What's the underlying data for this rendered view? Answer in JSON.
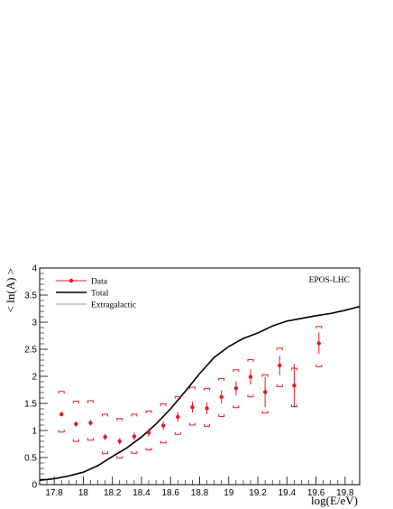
{
  "chart_data": {
    "type": "scatter",
    "title": "",
    "model_label": "EPOS-LHC",
    "xlabel": "log(E/eV)",
    "ylabel": "< ln(A) >",
    "xlim": [
      17.7,
      19.9
    ],
    "ylim": [
      0,
      4
    ],
    "x_ticks": [
      "17.8",
      "18",
      "18.2",
      "18.4",
      "18.6",
      "18.8",
      "19",
      "19.2",
      "19.4",
      "19.6",
      "19.8"
    ],
    "y_ticks": [
      "0",
      "0.5",
      "1",
      "1.5",
      "2",
      "2.5",
      "3",
      "3.5",
      "4"
    ],
    "grid": false,
    "legend_position": "top-left",
    "colors": {
      "data": "#e41a1c",
      "total": "#000000",
      "extragalactic": "#cccccc"
    },
    "series": [
      {
        "name": "Data",
        "kind": "points",
        "x": [
          17.85,
          17.95,
          18.05,
          18.15,
          18.25,
          18.35,
          18.45,
          18.55,
          18.65,
          18.75,
          18.85,
          18.95,
          19.05,
          19.15,
          19.25,
          19.35,
          19.45,
          19.62
        ],
        "y": [
          1.3,
          1.12,
          1.14,
          0.88,
          0.8,
          0.89,
          0.96,
          1.09,
          1.25,
          1.43,
          1.41,
          1.62,
          1.78,
          1.99,
          1.71,
          2.2,
          1.83,
          2.61
        ],
        "stat_err": [
          0.04,
          0.05,
          0.05,
          0.06,
          0.06,
          0.07,
          0.07,
          0.08,
          0.09,
          0.1,
          0.11,
          0.12,
          0.13,
          0.14,
          0.28,
          0.18,
          0.4,
          0.2
        ],
        "sys_hi": [
          1.72,
          1.54,
          1.55,
          1.3,
          1.22,
          1.3,
          1.36,
          1.49,
          1.63,
          1.8,
          1.78,
          1.96,
          2.12,
          2.31,
          2.03,
          2.52,
          2.15,
          2.92
        ],
        "sys_lo": [
          0.97,
          0.8,
          0.82,
          0.57,
          0.49,
          0.58,
          0.64,
          0.77,
          0.93,
          1.1,
          1.08,
          1.26,
          1.42,
          1.62,
          1.32,
          1.81,
          1.44,
          2.18
        ]
      },
      {
        "name": "Total",
        "kind": "line",
        "x": [
          17.7,
          17.8,
          17.9,
          18.0,
          18.1,
          18.2,
          18.3,
          18.4,
          18.5,
          18.6,
          18.7,
          18.8,
          18.9,
          19.0,
          19.1,
          19.2,
          19.3,
          19.4,
          19.5,
          19.6,
          19.7,
          19.8,
          19.9
        ],
        "y": [
          0.08,
          0.11,
          0.16,
          0.23,
          0.35,
          0.52,
          0.68,
          0.88,
          1.12,
          1.4,
          1.72,
          2.05,
          2.35,
          2.55,
          2.7,
          2.8,
          2.93,
          3.02,
          3.07,
          3.12,
          3.16,
          3.22,
          3.29
        ]
      },
      {
        "name": "Extragalactic",
        "kind": "line",
        "x": [],
        "y": []
      }
    ]
  }
}
